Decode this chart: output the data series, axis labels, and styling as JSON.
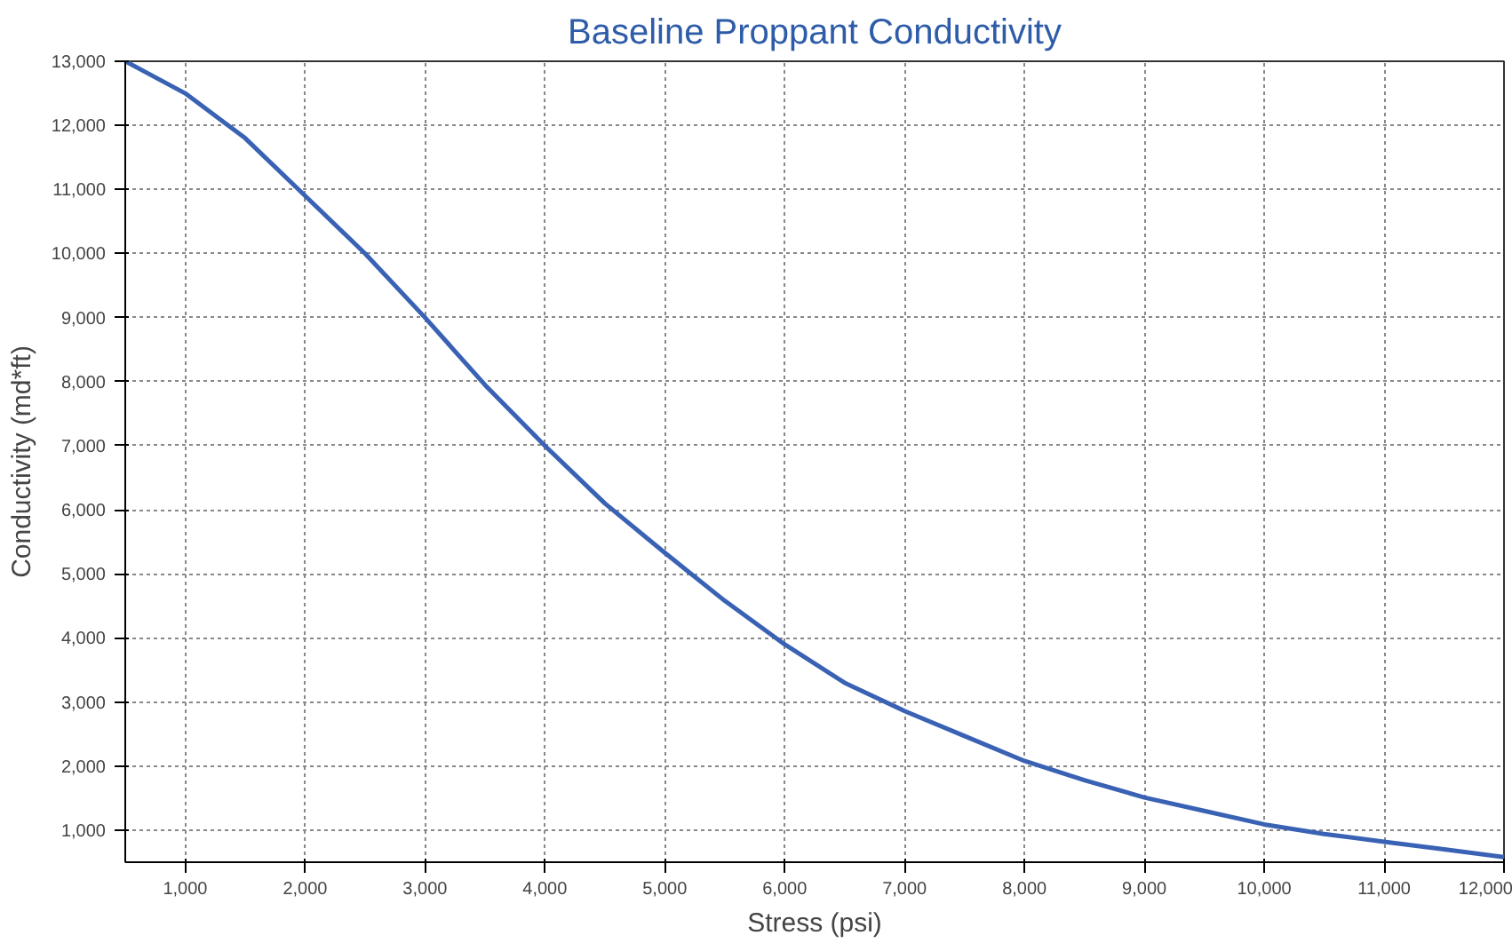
{
  "chart_data": {
    "type": "line",
    "title": "Baseline Proppant Conductivity",
    "xlabel": "Stress (psi)",
    "ylabel": "Conductivity (md*ft)",
    "x": [
      500,
      1000,
      1500,
      2000,
      2500,
      3000,
      3500,
      4000,
      4500,
      5000,
      5500,
      6000,
      6500,
      7000,
      7500,
      8000,
      8500,
      9000,
      9500,
      10000,
      10500,
      11000,
      11500,
      12000
    ],
    "series": [
      {
        "color": "#3a62b4",
        "values": [
          13000,
          12500,
          11800,
          10900,
          10000,
          9000,
          7950,
          7000,
          6100,
          5330,
          4580,
          3900,
          3300,
          2860,
          2470,
          2080,
          1780,
          1510,
          1300,
          1090,
          940,
          820,
          700,
          580
        ]
      }
    ],
    "xlim": [
      500,
      12000
    ],
    "ylim": [
      500,
      13000
    ],
    "xticks": [
      {
        "value": 1000,
        "label": "1,000"
      },
      {
        "value": 2000,
        "label": "2,000"
      },
      {
        "value": 3000,
        "label": "3,000"
      },
      {
        "value": 4000,
        "label": "4,000"
      },
      {
        "value": 5000,
        "label": "5,000"
      },
      {
        "value": 6000,
        "label": "6,000"
      },
      {
        "value": 7000,
        "label": "7,000"
      },
      {
        "value": 8000,
        "label": "8,000"
      },
      {
        "value": 9000,
        "label": "9,000"
      },
      {
        "value": 10000,
        "label": "10,000"
      },
      {
        "value": 11000,
        "label": "11,000"
      },
      {
        "value": 12000,
        "label": "12,000"
      }
    ],
    "yticks": [
      {
        "value": 1000,
        "label": "1,000"
      },
      {
        "value": 2000,
        "label": "2,000"
      },
      {
        "value": 3000,
        "label": "3,000"
      },
      {
        "value": 4000,
        "label": "4,000"
      },
      {
        "value": 5000,
        "label": "5,000"
      },
      {
        "value": 6000,
        "label": "6,000"
      },
      {
        "value": 7000,
        "label": "7,000"
      },
      {
        "value": 8000,
        "label": "8,000"
      },
      {
        "value": 9000,
        "label": "9,000"
      },
      {
        "value": 10000,
        "label": "10,000"
      },
      {
        "value": 11000,
        "label": "11,000"
      },
      {
        "value": 12000,
        "label": "12,000"
      },
      {
        "value": 13000,
        "label": "13,000"
      }
    ],
    "grid": true,
    "line_style": "solid"
  }
}
